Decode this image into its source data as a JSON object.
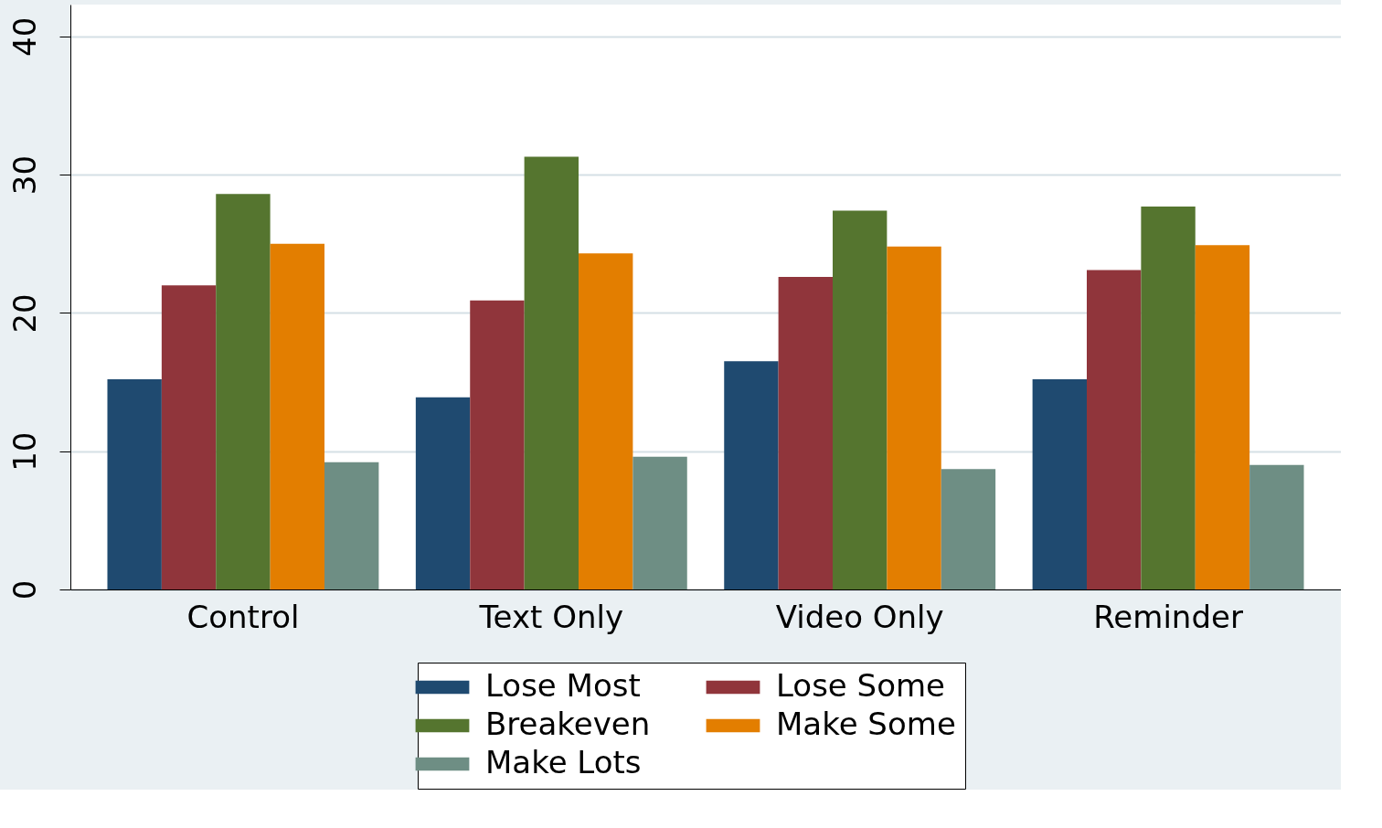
{
  "chart_data": {
    "type": "bar",
    "categories": [
      "Control",
      "Text Only",
      "Video Only",
      "Reminder"
    ],
    "series": [
      {
        "name": "Lose Most",
        "color": "#1f4a70",
        "values": [
          15.2,
          13.9,
          16.5,
          15.2
        ]
      },
      {
        "name": "Lose Some",
        "color": "#90353b",
        "values": [
          22.0,
          20.9,
          22.6,
          23.1
        ]
      },
      {
        "name": "Breakeven",
        "color": "#55752f",
        "values": [
          28.6,
          31.3,
          27.4,
          27.7
        ]
      },
      {
        "name": "Make Some",
        "color": "#e37e00",
        "values": [
          25.0,
          24.3,
          24.8,
          24.9
        ]
      },
      {
        "name": "Make Lots",
        "color": "#6e8e84",
        "values": [
          9.2,
          9.6,
          8.7,
          9.0
        ]
      }
    ],
    "ylim": [
      0,
      42.3
    ],
    "yticks": [
      0,
      10,
      20,
      30,
      40
    ],
    "grid": "y",
    "legend": "bottom"
  }
}
